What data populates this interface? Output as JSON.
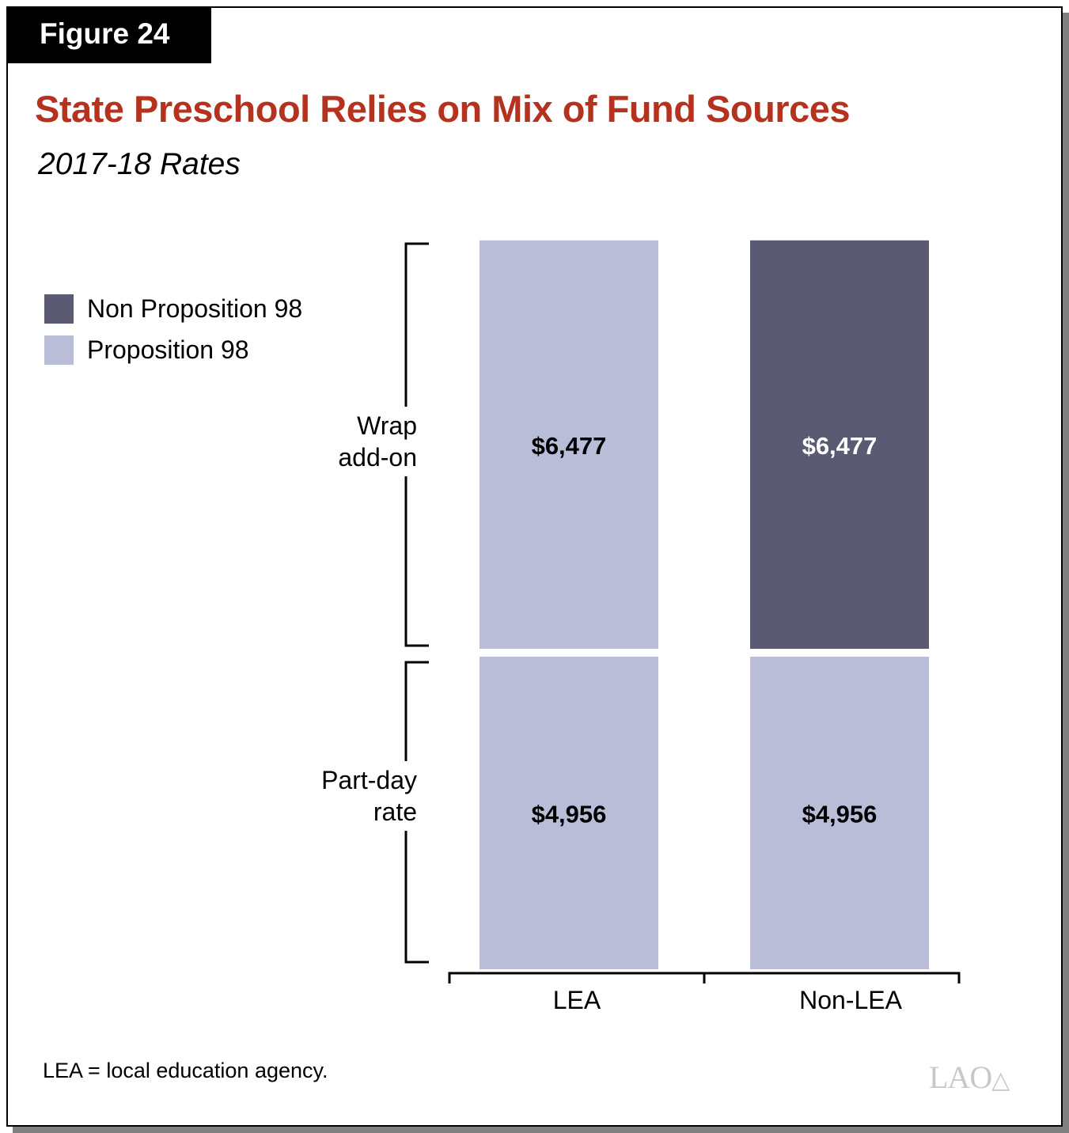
{
  "figure_label": "Figure 24",
  "chart_data": {
    "type": "bar",
    "stacked": true,
    "title": "State Preschool Relies on Mix of Fund Sources",
    "subtitle": "2017-18 Rates",
    "categories": [
      "LEA",
      "Non-LEA"
    ],
    "components": [
      "Part-day rate",
      "Wrap add-on"
    ],
    "segments": [
      {
        "category": "LEA",
        "component": "Part-day rate",
        "source": "Proposition 98",
        "value": 4956,
        "label": "$4,956"
      },
      {
        "category": "LEA",
        "component": "Wrap add-on",
        "source": "Proposition 98",
        "value": 6477,
        "label": "$6,477"
      },
      {
        "category": "Non-LEA",
        "component": "Part-day rate",
        "source": "Proposition 98",
        "value": 4956,
        "label": "$4,956"
      },
      {
        "category": "Non-LEA",
        "component": "Wrap add-on",
        "source": "Non Proposition 98",
        "value": 6477,
        "label": "$6,477"
      }
    ],
    "legend": {
      "position": "left",
      "entries": [
        {
          "name": "Non Proposition 98",
          "color": "#5b5a73"
        },
        {
          "name": "Proposition 98",
          "color": "#b9bdd8"
        }
      ]
    },
    "bracket_labels": {
      "wrap": [
        "Wrap",
        "add-on"
      ],
      "partday": [
        "Part-day",
        "rate"
      ]
    },
    "grid": false
  },
  "note": "LEA = local education agency.",
  "logo_text": "LAO"
}
